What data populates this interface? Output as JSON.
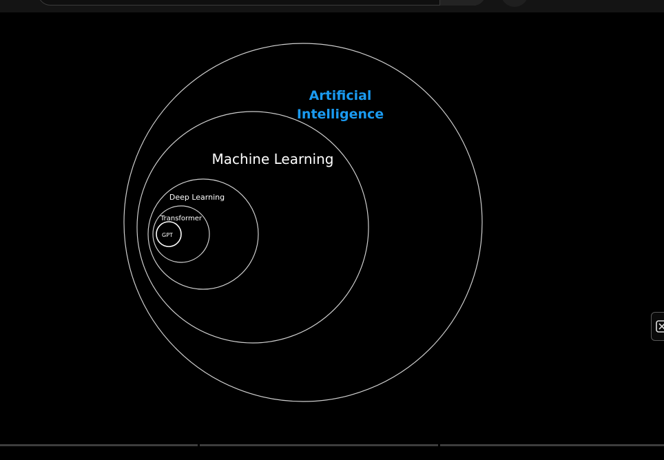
{
  "diagram": {
    "nodes": [
      {
        "id": "ai",
        "label_lines": [
          "Artificial",
          "Intelligence"
        ],
        "color": "#1a9af0"
      },
      {
        "id": "ml",
        "label_lines": [
          "Machine Learning"
        ],
        "color": "#ffffff"
      },
      {
        "id": "dl",
        "label_lines": [
          "Deep Learning"
        ],
        "color": "#ffffff"
      },
      {
        "id": "transformer",
        "label_lines": [
          "Transformer"
        ],
        "color": "#ffffff"
      },
      {
        "id": "gpt",
        "label_lines": [
          "GPT"
        ],
        "color": "#ffffff"
      }
    ],
    "nesting": "each circle is contained in the previous one"
  },
  "toolbar": {
    "search_icon": "search-icon",
    "mic_icon": "mic-icon"
  },
  "side_button": {
    "icon": "close-box-icon"
  },
  "colors": {
    "background": "#000000",
    "circle_stroke": "#d0d0d0",
    "accent": "#1a9af0"
  }
}
